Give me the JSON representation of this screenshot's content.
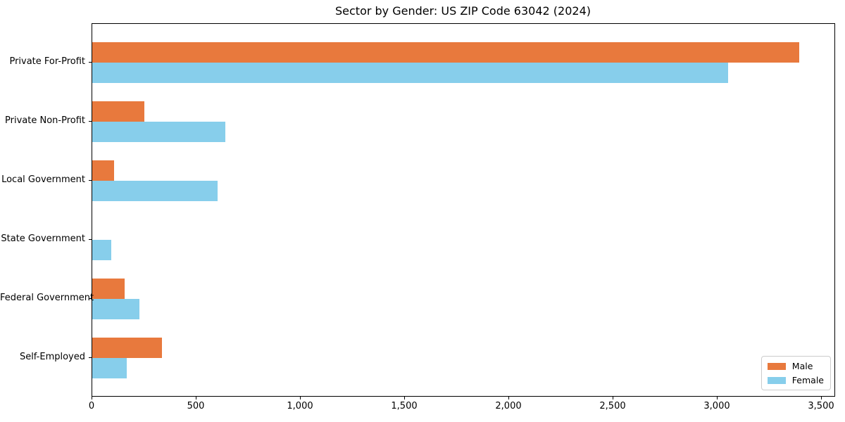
{
  "chart_data": {
    "type": "bar",
    "orientation": "horizontal",
    "title": "Sector by Gender: US ZIP Code 63042 (2024)",
    "categories": [
      "Private For-Profit",
      "Private Non-Profit",
      "Local Government",
      "State Government",
      "Federal Government",
      "Self-Employed"
    ],
    "series": [
      {
        "name": "Male",
        "color": "#e8793d",
        "values": [
          3390,
          250,
          105,
          0,
          155,
          335
        ]
      },
      {
        "name": "Female",
        "color": "#87ceeb",
        "values": [
          3050,
          640,
          600,
          90,
          225,
          165
        ]
      }
    ],
    "xlim": [
      0,
      3560
    ],
    "x_ticks": [
      0,
      500,
      1000,
      1500,
      2000,
      2500,
      3000,
      3500
    ],
    "x_tick_labels": [
      "0",
      "500",
      "1,000",
      "1,500",
      "2,000",
      "2,500",
      "3,000",
      "3,500"
    ],
    "xlabel": "",
    "ylabel": "",
    "grid": false,
    "legend": {
      "position": "lower right",
      "entries": [
        "Male",
        "Female"
      ]
    },
    "colors": {
      "axis": "#000000",
      "background": "#ffffff",
      "legend_border": "#cccccc"
    }
  }
}
